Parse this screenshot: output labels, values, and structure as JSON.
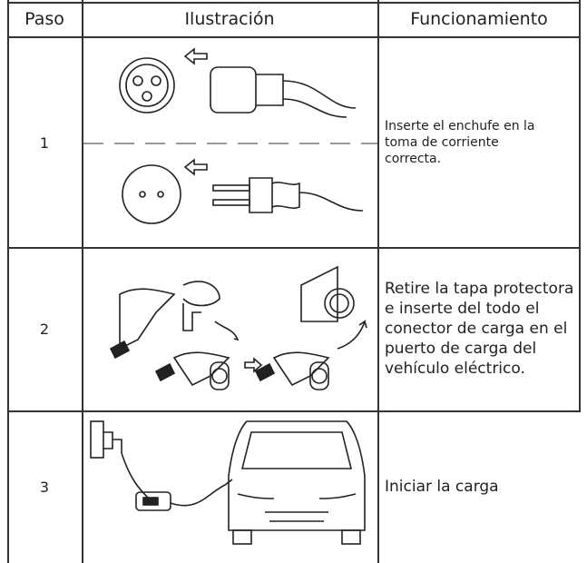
{
  "table": {
    "columns": [
      "Paso",
      "Ilustración",
      "Funcionamiento"
    ],
    "rows": [
      {
        "step": "1",
        "text": "Inserte el enchufe en la toma de corriente correcta."
      },
      {
        "step": "2",
        "text": "Retire la tapa protectora e inserte del todo el conector de carga en el puerto de carga del vehículo eléctrico."
      },
      {
        "step": "3",
        "text": "Iniciar la carga"
      }
    ]
  }
}
